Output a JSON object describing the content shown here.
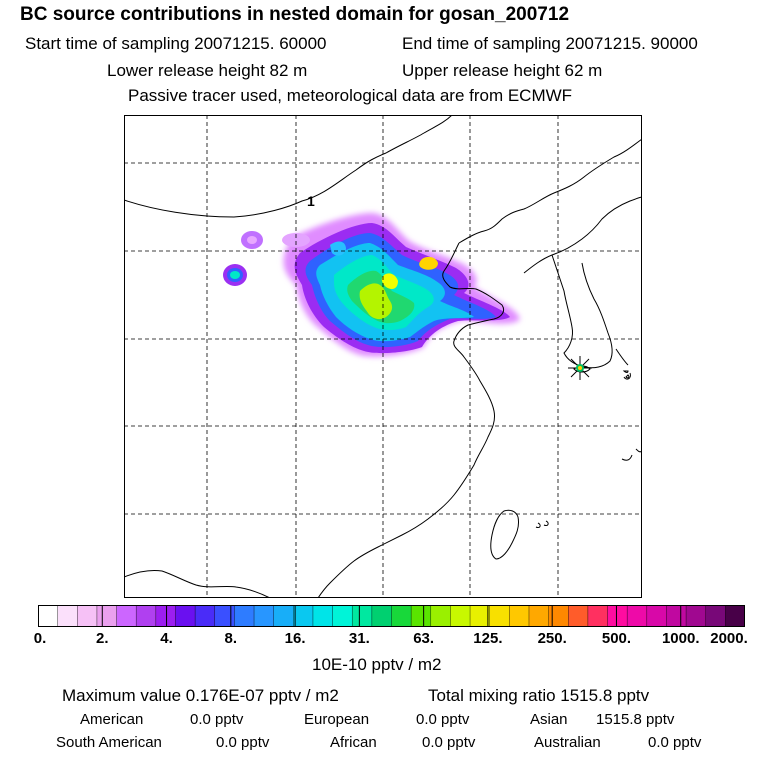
{
  "header": {
    "title": "BC  source contributions in nested domain for gosan_200712",
    "start_label": "Start time of sampling 20071215. 60000",
    "end_label": "End time of sampling 20071215. 90000",
    "lower_label": "Lower release height   82 m",
    "upper_label": "Upper release height   62 m",
    "tracer_label": "Passive tracer used, meteorological data are from ECMWF"
  },
  "map": {
    "site_marker": "star-icon",
    "label_1": "1"
  },
  "colorbar": {
    "ticks": [
      "0.",
      "2.",
      "4.",
      "8.",
      "16.",
      "31.",
      "63.",
      "125.",
      "250.",
      "500.",
      "1000.",
      "2000."
    ],
    "colors": [
      "#ffffff",
      "#fbe0fb",
      "#f6c1f6",
      "#eaa0ee",
      "#cc66ff",
      "#b040f0",
      "#9c1ef0",
      "#6a10f0",
      "#4a2cf8",
      "#3a50ff",
      "#2e7cff",
      "#2896ff",
      "#18aef8",
      "#0ac8f0",
      "#00e4e8",
      "#00f4d8",
      "#00e8a0",
      "#00d070",
      "#18d83a",
      "#5ae400",
      "#9af000",
      "#c8f800",
      "#e8f000",
      "#f8e000",
      "#ffc800",
      "#ffa800",
      "#ff8800",
      "#ff5c2a",
      "#ff3060",
      "#ff0ca0",
      "#ee0aa8",
      "#d808a8",
      "#c008a0",
      "#a00890",
      "#780878",
      "#480048"
    ],
    "unit_label": "10E-10 pptv / m2"
  },
  "summary": {
    "max_label": "Maximum value  0.176E-07 pptv / m2",
    "total_label": "Total mixing ratio     1515.8 pptv",
    "regions": [
      {
        "name": "American",
        "value": "0.0 pptv"
      },
      {
        "name": "European",
        "value": "0.0 pptv"
      },
      {
        "name": "Asian",
        "value": "1515.8 pptv"
      },
      {
        "name": "South American",
        "value": "0.0 pptv"
      },
      {
        "name": "African",
        "value": "0.0 pptv"
      },
      {
        "name": "Australian",
        "value": "0.0 pptv"
      }
    ]
  }
}
